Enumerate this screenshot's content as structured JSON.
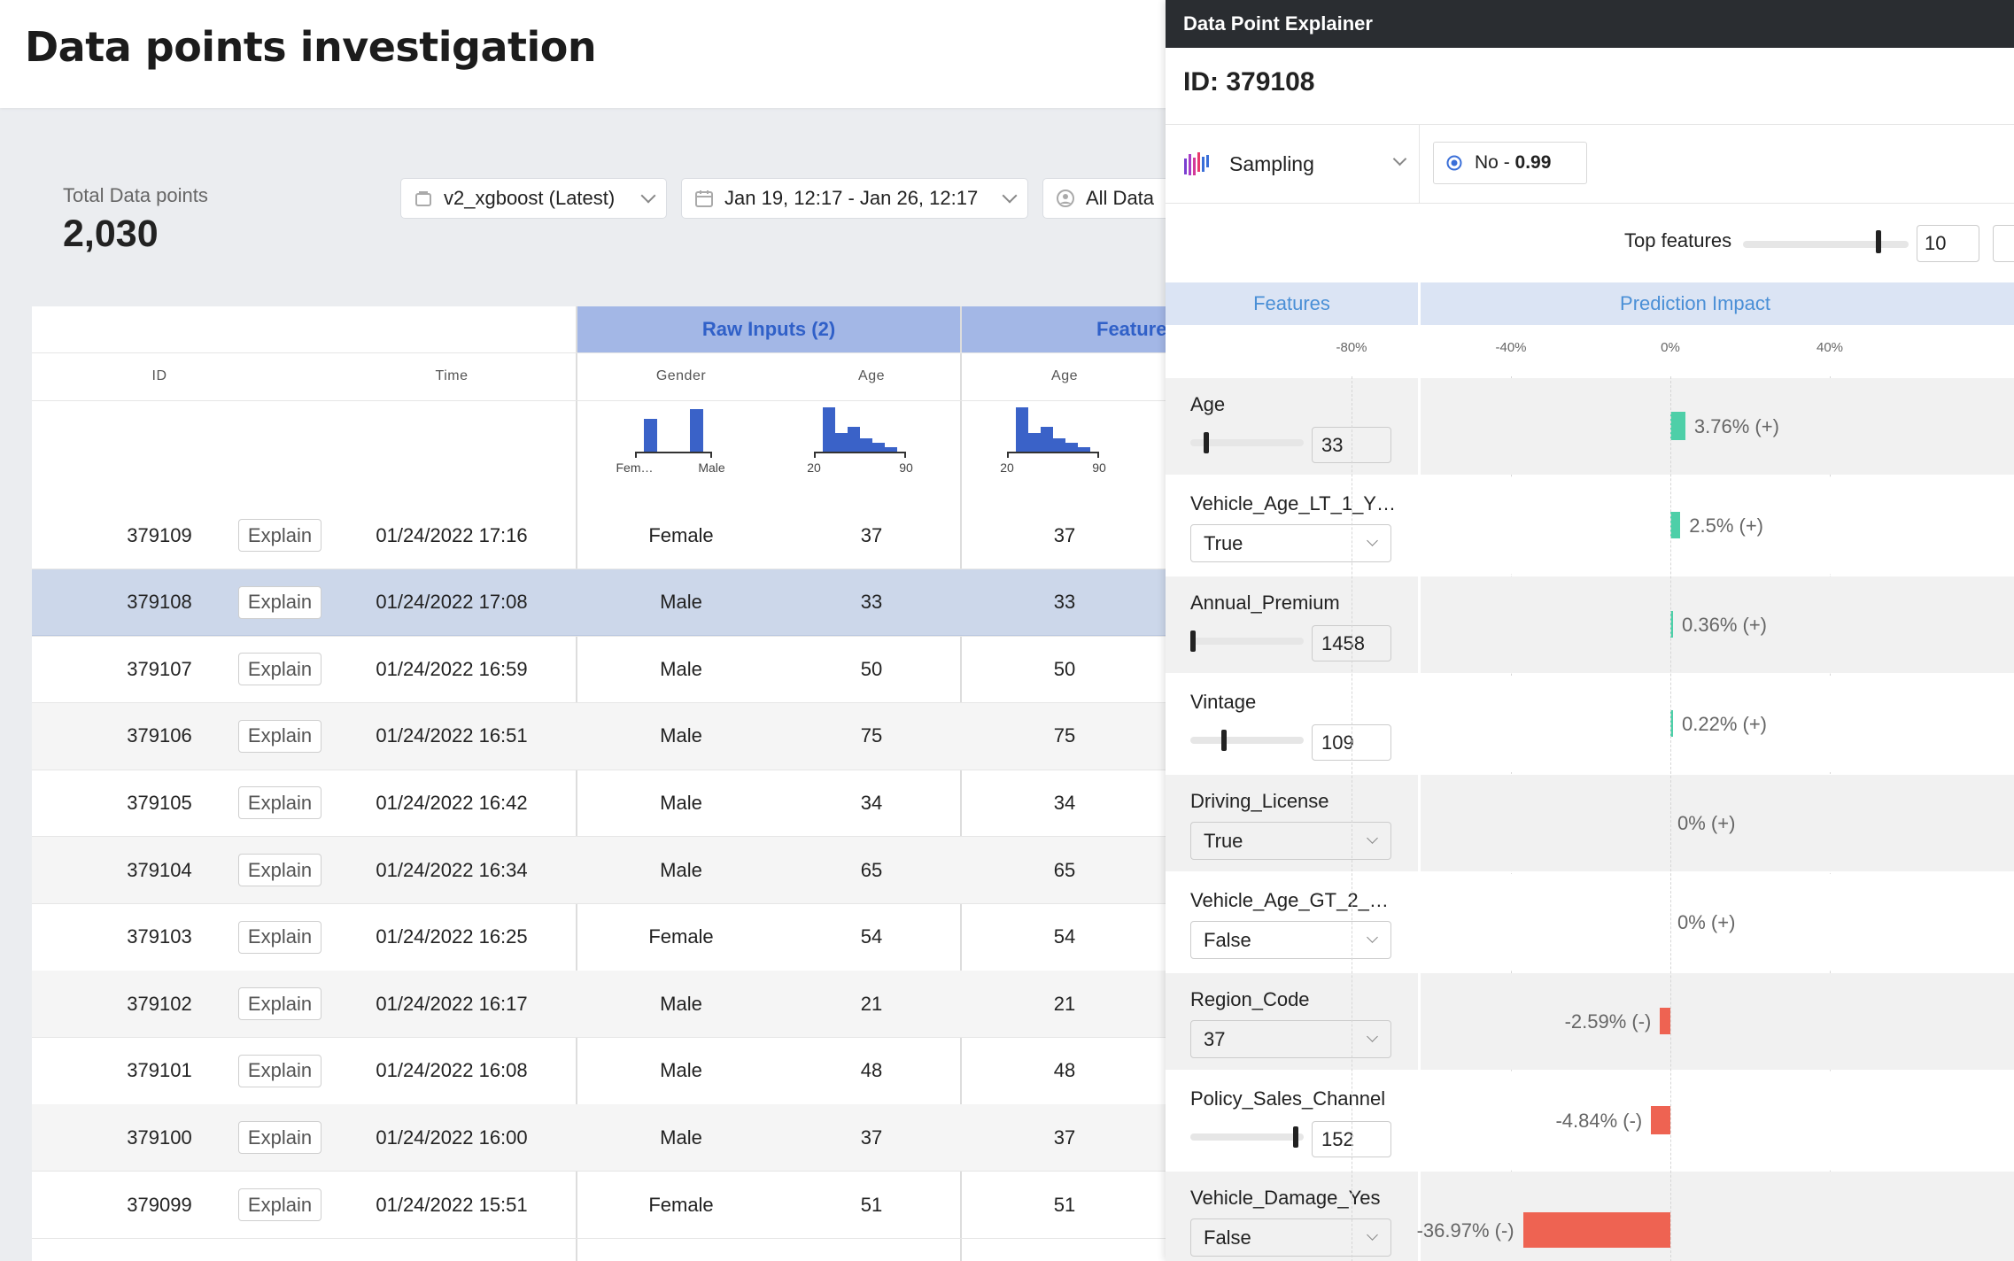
{
  "page": {
    "title": "Data points investigation"
  },
  "summary": {
    "total_label": "Total Data points",
    "total_value": "2,030"
  },
  "filters": {
    "model": "v2_xgboost (Latest)",
    "date_range": "Jan 19, 12:17 - Jan 26, 12:17",
    "segment": "All Data"
  },
  "table": {
    "groups": {
      "raw_inputs": "Raw Inputs (2)",
      "features": "Feature"
    },
    "columns": {
      "id": "ID",
      "time": "Time",
      "gender": "Gender",
      "age_raw": "Age",
      "age_feat": "Age"
    },
    "histograms": {
      "gender": {
        "min_label": "Fem…",
        "max_label": "Male",
        "bars": [
          0.55,
          0.72
        ]
      },
      "age_raw": {
        "min_label": "20",
        "max_label": "90",
        "bars": [
          0.75,
          0.32,
          0.42,
          0.22,
          0.15,
          0.08
        ]
      },
      "age_feat": {
        "min_label": "20",
        "max_label": "90",
        "bars": [
          0.75,
          0.32,
          0.42,
          0.22,
          0.15,
          0.08
        ]
      }
    },
    "explain_label": "Explain",
    "rows": [
      {
        "id": "379109",
        "time": "01/24/2022 17:16",
        "gender": "Female",
        "age": "37",
        "age_feat": "37"
      },
      {
        "id": "379108",
        "time": "01/24/2022 17:08",
        "gender": "Male",
        "age": "33",
        "age_feat": "33"
      },
      {
        "id": "379107",
        "time": "01/24/2022 16:59",
        "gender": "Male",
        "age": "50",
        "age_feat": "50"
      },
      {
        "id": "379106",
        "time": "01/24/2022 16:51",
        "gender": "Male",
        "age": "75",
        "age_feat": "75"
      },
      {
        "id": "379105",
        "time": "01/24/2022 16:42",
        "gender": "Male",
        "age": "34",
        "age_feat": "34"
      },
      {
        "id": "379104",
        "time": "01/24/2022 16:34",
        "gender": "Male",
        "age": "65",
        "age_feat": "65"
      },
      {
        "id": "379103",
        "time": "01/24/2022 16:25",
        "gender": "Female",
        "age": "54",
        "age_feat": "54"
      },
      {
        "id": "379102",
        "time": "01/24/2022 16:17",
        "gender": "Male",
        "age": "21",
        "age_feat": "21"
      },
      {
        "id": "379101",
        "time": "01/24/2022 16:08",
        "gender": "Male",
        "age": "48",
        "age_feat": "48"
      },
      {
        "id": "379100",
        "time": "01/24/2022 16:00",
        "gender": "Male",
        "age": "37",
        "age_feat": "37"
      },
      {
        "id": "379099",
        "time": "01/24/2022 15:51",
        "gender": "Female",
        "age": "51",
        "age_feat": "51"
      }
    ],
    "selected_row_id": "379108"
  },
  "panel": {
    "title": "Data Point Explainer",
    "id_label": "ID: 379108",
    "method": "Sampling",
    "prediction": {
      "label": "No",
      "separator": " - ",
      "score": "0.99"
    },
    "top_features": {
      "label": "Top features",
      "value": "10",
      "fraction": 0.82
    },
    "headers": {
      "features": "Features",
      "impact": "Prediction Impact"
    },
    "axis_ticks": [
      "-80%",
      "-40%",
      "0%",
      "40%"
    ],
    "colors": {
      "positive": "#4ecfa8",
      "negative": "#ee6352",
      "accent": "#3a6fd8"
    },
    "features": [
      {
        "name": "Age",
        "control": "slider",
        "value": "33",
        "level": 0.14,
        "impact": 3.76,
        "impact_label": "3.76% (+)"
      },
      {
        "name": "Vehicle_Age_LT_1_Y…",
        "control": "select",
        "value": "True",
        "impact": 2.5,
        "impact_label": "2.5% (+)"
      },
      {
        "name": "Annual_Premium",
        "control": "slider",
        "value": "1458",
        "level": 0.02,
        "impact": 0.36,
        "impact_label": "0.36% (+)"
      },
      {
        "name": "Vintage",
        "control": "slider",
        "value": "109",
        "level": 0.3,
        "impact": 0.22,
        "impact_label": "0.22% (+)"
      },
      {
        "name": "Driving_License",
        "control": "select",
        "value": "True",
        "impact": 0,
        "impact_label": "0% (+)"
      },
      {
        "name": "Vehicle_Age_GT_2_…",
        "control": "select",
        "value": "False",
        "impact": 0,
        "impact_label": "0% (+)"
      },
      {
        "name": "Region_Code",
        "control": "select",
        "value": "37",
        "impact": -2.59,
        "impact_label": "-2.59% (-)"
      },
      {
        "name": "Policy_Sales_Channel",
        "control": "slider",
        "value": "152",
        "level": 0.93,
        "impact": -4.84,
        "impact_label": "-4.84% (-)"
      },
      {
        "name": "Vehicle_Damage_Yes",
        "control": "select",
        "value": "False",
        "impact": -36.97,
        "impact_label": "-36.97% (-)"
      }
    ]
  }
}
